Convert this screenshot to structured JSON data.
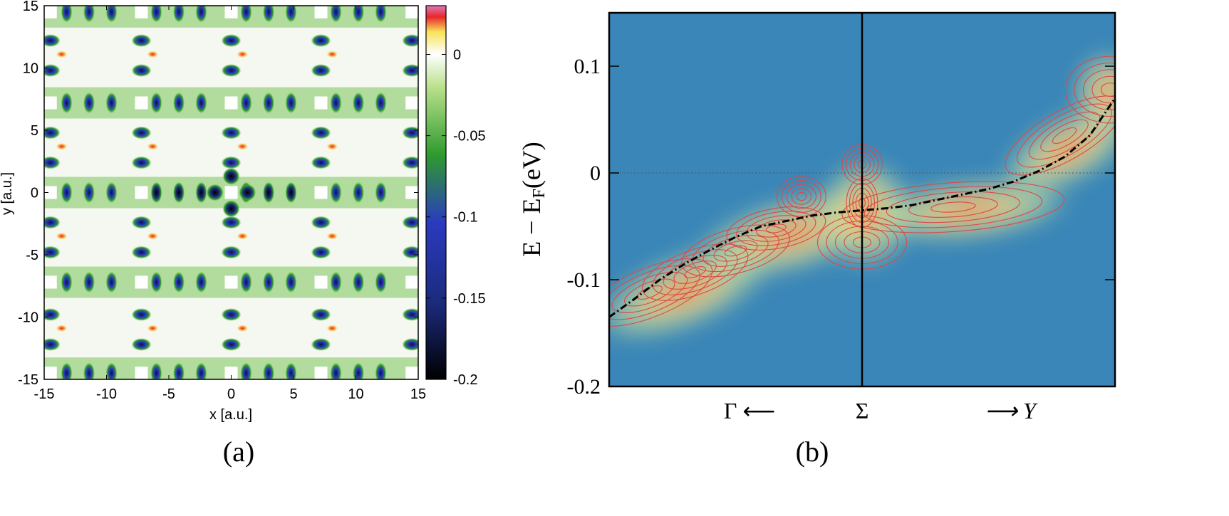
{
  "chart_data": [
    {
      "type": "heatmap",
      "panel_label": "(a)",
      "xlabel": "x [a.u.]",
      "ylabel": "y [a.u.]",
      "xlim": [
        -15,
        15
      ],
      "ylim": [
        -15,
        15
      ],
      "x_ticks": [
        "-15",
        "-10",
        "-5",
        "0",
        "5",
        "10",
        "15"
      ],
      "y_ticks": [
        "15",
        "10",
        "5",
        "0",
        "-5",
        "-10",
        "-15"
      ],
      "colorbar": {
        "range": [
          -0.2,
          0.03
        ],
        "ticks": [
          "0",
          "-0.05",
          "-0.1",
          "-0.15",
          "-0.2"
        ],
        "colors": [
          "#000000",
          "#2a3bbf",
          "#2e9a2e",
          "#9bd25a",
          "#ffffff",
          "#f7e35a",
          "#e8262a",
          "#e07ab8"
        ]
      }
    },
    {
      "type": "heatmap",
      "panel_label": "(b)",
      "ylabel": "E − E",
      "ylabel_sub": "F",
      "ylabel_unit": "(eV)",
      "ylim": [
        -0.2,
        0.15
      ],
      "y_ticks": [
        "0.1",
        "0",
        "-0.1",
        "-0.2"
      ],
      "k_labels": [
        "Γ ⟵",
        "Σ",
        "⟶ Y"
      ],
      "fermi_level": 0,
      "background_color": "#3a86b8",
      "contour_color": "#d94a4a",
      "dispersion": {
        "x": [
          0,
          0.05,
          0.1,
          0.15,
          0.2,
          0.25,
          0.3,
          0.35,
          0.4,
          0.45,
          0.5,
          0.55,
          0.6,
          0.65,
          0.7,
          0.75,
          0.8,
          0.85,
          0.9,
          0.95,
          1.0
        ],
        "y": [
          -0.135,
          -0.118,
          -0.1,
          -0.085,
          -0.072,
          -0.06,
          -0.05,
          -0.045,
          -0.04,
          -0.037,
          -0.035,
          -0.033,
          -0.03,
          -0.025,
          -0.02,
          -0.015,
          -0.008,
          0.002,
          0.015,
          0.035,
          0.07
        ]
      }
    }
  ]
}
